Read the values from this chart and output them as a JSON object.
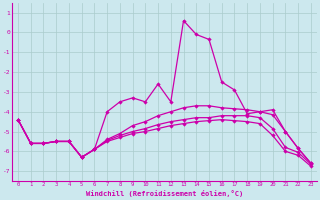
{
  "bg_color": "#cce8ee",
  "grid_color": "#aacccc",
  "line_color": "#cc00aa",
  "xlabel": "Windchill (Refroidissement éolien,°C)",
  "xlim": [
    -0.5,
    23.5
  ],
  "ylim": [
    -7.5,
    1.5
  ],
  "yticks": [
    1,
    0,
    -1,
    -2,
    -3,
    -4,
    -5,
    -6,
    -7
  ],
  "xticks": [
    0,
    1,
    2,
    3,
    4,
    5,
    6,
    7,
    8,
    9,
    10,
    11,
    12,
    13,
    14,
    15,
    16,
    17,
    18,
    19,
    20,
    21,
    22,
    23
  ],
  "line1": [
    -4.4,
    -5.6,
    -5.6,
    -5.5,
    -5.5,
    -6.3,
    -5.9,
    -4.0,
    -3.5,
    -3.3,
    -3.5,
    -2.6,
    -3.5,
    0.6,
    -0.1,
    -0.35,
    -2.5,
    -2.9,
    -4.1,
    -4.0,
    -3.9,
    -5.0,
    -5.85,
    -6.6
  ],
  "line2": [
    -4.4,
    -5.6,
    -5.6,
    -5.5,
    -5.5,
    -6.3,
    -5.9,
    -5.4,
    -5.1,
    -4.7,
    -4.5,
    -4.2,
    -4.0,
    -3.8,
    -3.7,
    -3.7,
    -3.8,
    -3.85,
    -3.9,
    -4.0,
    -4.15,
    -5.0,
    -5.85,
    -6.6
  ],
  "line3": [
    -4.4,
    -5.6,
    -5.6,
    -5.5,
    -5.5,
    -6.3,
    -5.9,
    -5.45,
    -5.2,
    -5.0,
    -4.85,
    -4.65,
    -4.5,
    -4.4,
    -4.3,
    -4.3,
    -4.2,
    -4.2,
    -4.2,
    -4.3,
    -4.85,
    -5.8,
    -6.05,
    -6.65
  ],
  "line4": [
    -4.4,
    -5.6,
    -5.6,
    -5.5,
    -5.5,
    -6.3,
    -5.9,
    -5.5,
    -5.3,
    -5.1,
    -5.0,
    -4.85,
    -4.7,
    -4.6,
    -4.5,
    -4.45,
    -4.4,
    -4.45,
    -4.5,
    -4.6,
    -5.2,
    -6.0,
    -6.2,
    -6.75
  ]
}
